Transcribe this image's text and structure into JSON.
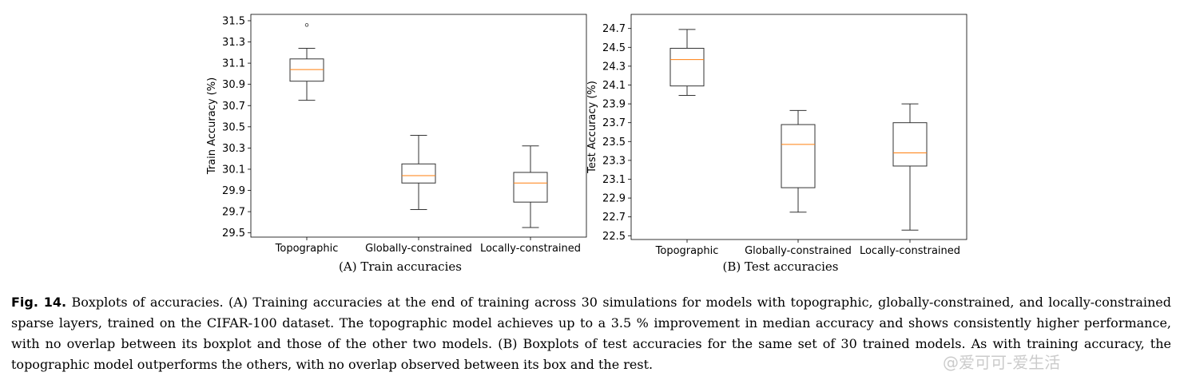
{
  "chart_data": [
    {
      "type": "box",
      "panel": "A",
      "subcaption": "(A) Train accuracies",
      "ylabel": "Train Accuracy (%)",
      "ylim": [
        29.46,
        31.56
      ],
      "yticks": [
        "29.5",
        "29.7",
        "29.9",
        "30.1",
        "30.3",
        "30.5",
        "30.7",
        "30.9",
        "31.1",
        "31.3",
        "31.5"
      ],
      "categories": [
        "Topographic",
        "Globally-constrained",
        "Locally-constrained"
      ],
      "boxes": [
        {
          "whisker_low": 30.75,
          "q1": 30.93,
          "median": 31.04,
          "q3": 31.14,
          "whisker_high": 31.24,
          "outliers": [
            31.46
          ]
        },
        {
          "whisker_low": 29.72,
          "q1": 29.97,
          "median": 30.04,
          "q3": 30.15,
          "whisker_high": 30.42,
          "outliers": []
        },
        {
          "whisker_low": 29.55,
          "q1": 29.79,
          "median": 29.97,
          "q3": 30.07,
          "whisker_high": 30.32,
          "outliers": []
        }
      ],
      "colors": {
        "box": "#333333",
        "median": "#ff7f0e"
      }
    },
    {
      "type": "box",
      "panel": "B",
      "subcaption": "(B) Test accuracies",
      "ylabel": "Test Accuracy (%)",
      "ylim": [
        22.46,
        24.85
      ],
      "yticks": [
        "22.5",
        "22.7",
        "22.9",
        "23.1",
        "23.3",
        "23.5",
        "23.7",
        "23.9",
        "24.1",
        "24.3",
        "24.5",
        "24.7"
      ],
      "categories": [
        "Topographic",
        "Globally-constrained",
        "Locally-constrained"
      ],
      "boxes": [
        {
          "whisker_low": 23.99,
          "q1": 24.09,
          "median": 24.37,
          "q3": 24.49,
          "whisker_high": 24.69,
          "outliers": []
        },
        {
          "whisker_low": 22.75,
          "q1": 23.01,
          "median": 23.47,
          "q3": 23.68,
          "whisker_high": 23.83,
          "outliers": []
        },
        {
          "whisker_low": 22.56,
          "q1": 23.24,
          "median": 23.38,
          "q3": 23.7,
          "whisker_high": 23.9,
          "outliers": []
        }
      ],
      "colors": {
        "box": "#333333",
        "median": "#ff7f0e"
      }
    }
  ],
  "caption": {
    "label": "Fig. 14.",
    "text": "Boxplots of accuracies. (A) Training accuracies at the end of training across 30 simulations for models with topographic, globally-constrained, and locally-constrained sparse layers, trained on the CIFAR-100 dataset. The topographic model achieves up to a 3.5 % improvement in median accuracy and shows consistently higher performance, with no overlap between its boxplot and those of the other two models. (B) Boxplots of test accuracies for the same set of 30 trained models. As with training accuracy, the topographic model outperforms the others, with no overlap observed between its box and the rest."
  },
  "watermark": "@爱可可-爱生活"
}
